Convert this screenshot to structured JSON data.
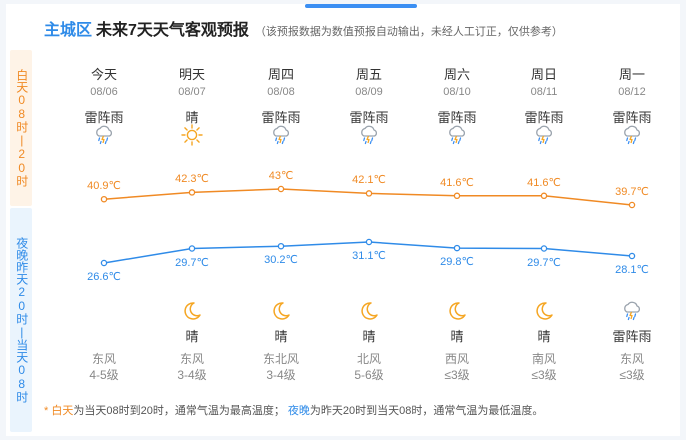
{
  "title": {
    "district": "主城区",
    "main": "未来7天天气客观预报",
    "note": "（该预报数据为数值预报自动输出，未经人工订正，仅供参考）"
  },
  "sidebar": {
    "day_label": "白天08时|20时",
    "night_label": "夜晚昨天20时|当天08时"
  },
  "days": [
    {
      "name": "今天",
      "date": "08/06",
      "day_cond": "雷阵雨",
      "day_icon": "thunder-rain-icon",
      "night_cond": "",
      "night_icon": "",
      "wind_dir": "东风",
      "wind_level": "4-5级"
    },
    {
      "name": "明天",
      "date": "08/07",
      "day_cond": "晴",
      "day_icon": "sun-icon",
      "night_cond": "晴",
      "night_icon": "moon-icon",
      "wind_dir": "东风",
      "wind_level": "3-4级"
    },
    {
      "name": "周四",
      "date": "08/08",
      "day_cond": "雷阵雨",
      "day_icon": "thunder-rain-icon",
      "night_cond": "晴",
      "night_icon": "moon-icon",
      "wind_dir": "东北风",
      "wind_level": "3-4级"
    },
    {
      "name": "周五",
      "date": "08/09",
      "day_cond": "雷阵雨",
      "day_icon": "thunder-rain-icon",
      "night_cond": "晴",
      "night_icon": "moon-icon",
      "wind_dir": "北风",
      "wind_level": "5-6级"
    },
    {
      "name": "周六",
      "date": "08/10",
      "day_cond": "雷阵雨",
      "day_icon": "thunder-rain-icon",
      "night_cond": "晴",
      "night_icon": "moon-icon",
      "wind_dir": "西风",
      "wind_level": "≤3级"
    },
    {
      "name": "周日",
      "date": "08/11",
      "day_cond": "雷阵雨",
      "day_icon": "thunder-rain-icon",
      "night_cond": "晴",
      "night_icon": "moon-icon",
      "wind_dir": "南风",
      "wind_level": "≤3级"
    },
    {
      "name": "周一",
      "date": "08/12",
      "day_cond": "雷阵雨",
      "day_icon": "thunder-rain-icon",
      "night_cond": "雷阵雨",
      "night_icon": "thunder-rain-icon",
      "wind_dir": "东风",
      "wind_level": "≤3级"
    }
  ],
  "chart_data": {
    "type": "line",
    "x": [
      "08/06",
      "08/07",
      "08/08",
      "08/09",
      "08/10",
      "08/11",
      "08/12"
    ],
    "series": [
      {
        "values": [
          40.9,
          42.3,
          43,
          42.1,
          41.6,
          41.6,
          39.7
        ],
        "labels": [
          "40.9℃",
          "42.3℃",
          "43℃",
          "42.1℃",
          "41.6℃",
          "41.6℃",
          "39.7℃"
        ],
        "color": "#f08a24"
      },
      {
        "values": [
          26.6,
          29.7,
          30.2,
          31.1,
          29.8,
          29.7,
          28.1
        ],
        "labels": [
          "26.6℃",
          "29.7℃",
          "30.2℃",
          "31.1℃",
          "29.8℃",
          "29.7℃",
          "28.1℃"
        ],
        "color": "#2f8be8"
      }
    ]
  },
  "footnote": {
    "star": "*",
    "day_term": "白天",
    "day_text": "为当天08时到20时，通常气温为最高温度；",
    "night_term": "夜晚",
    "night_text": "为昨天20时到当天08时，通常气温为最低温度。"
  },
  "colors": {
    "accent": "#2f8be8",
    "orange": "#f08a24",
    "day_bg": "#fef3e7",
    "night_bg": "#eaf4fd"
  }
}
